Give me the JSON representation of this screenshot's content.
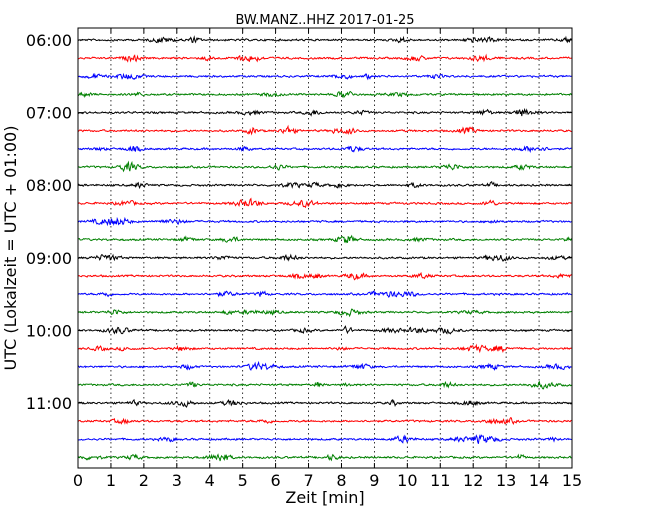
{
  "chart_data": {
    "type": "line",
    "title": "BW.MANZ..HHZ 2017-01-25",
    "xlabel": "Zeit  [min]",
    "ylabel": "UTC (Lokalzeit = UTC + 01:00)",
    "xlim": [
      0,
      15
    ],
    "x_ticks": [
      "0",
      "1",
      "2",
      "3",
      "4",
      "5",
      "6",
      "7",
      "8",
      "9",
      "10",
      "11",
      "12",
      "13",
      "14",
      "15"
    ],
    "y_ticks": [
      "06:00",
      "07:00",
      "08:00",
      "09:00",
      "10:00",
      "11:00"
    ],
    "trace_minutes": 15,
    "vertical_grid": "dotted",
    "trace_colors": [
      "#000000",
      "#ff0000",
      "#0000ff",
      "#008000"
    ],
    "traces": [
      {
        "start": "06:00",
        "color": "#000000"
      },
      {
        "start": "06:15",
        "color": "#ff0000"
      },
      {
        "start": "06:30",
        "color": "#0000ff"
      },
      {
        "start": "06:45",
        "color": "#008000"
      },
      {
        "start": "07:00",
        "color": "#000000"
      },
      {
        "start": "07:15",
        "color": "#ff0000"
      },
      {
        "start": "07:30",
        "color": "#0000ff"
      },
      {
        "start": "07:45",
        "color": "#008000"
      },
      {
        "start": "08:00",
        "color": "#000000"
      },
      {
        "start": "08:15",
        "color": "#ff0000"
      },
      {
        "start": "08:30",
        "color": "#0000ff"
      },
      {
        "start": "08:45",
        "color": "#008000"
      },
      {
        "start": "09:00",
        "color": "#000000"
      },
      {
        "start": "09:15",
        "color": "#ff0000"
      },
      {
        "start": "09:30",
        "color": "#0000ff"
      },
      {
        "start": "09:45",
        "color": "#008000"
      },
      {
        "start": "10:00",
        "color": "#000000"
      },
      {
        "start": "10:15",
        "color": "#ff0000"
      },
      {
        "start": "10:30",
        "color": "#0000ff"
      },
      {
        "start": "10:45",
        "color": "#008000"
      },
      {
        "start": "11:00",
        "color": "#000000"
      },
      {
        "start": "11:15",
        "color": "#ff0000"
      },
      {
        "start": "11:30",
        "color": "#0000ff"
      },
      {
        "start": "11:45",
        "color": "#008000"
      }
    ]
  }
}
